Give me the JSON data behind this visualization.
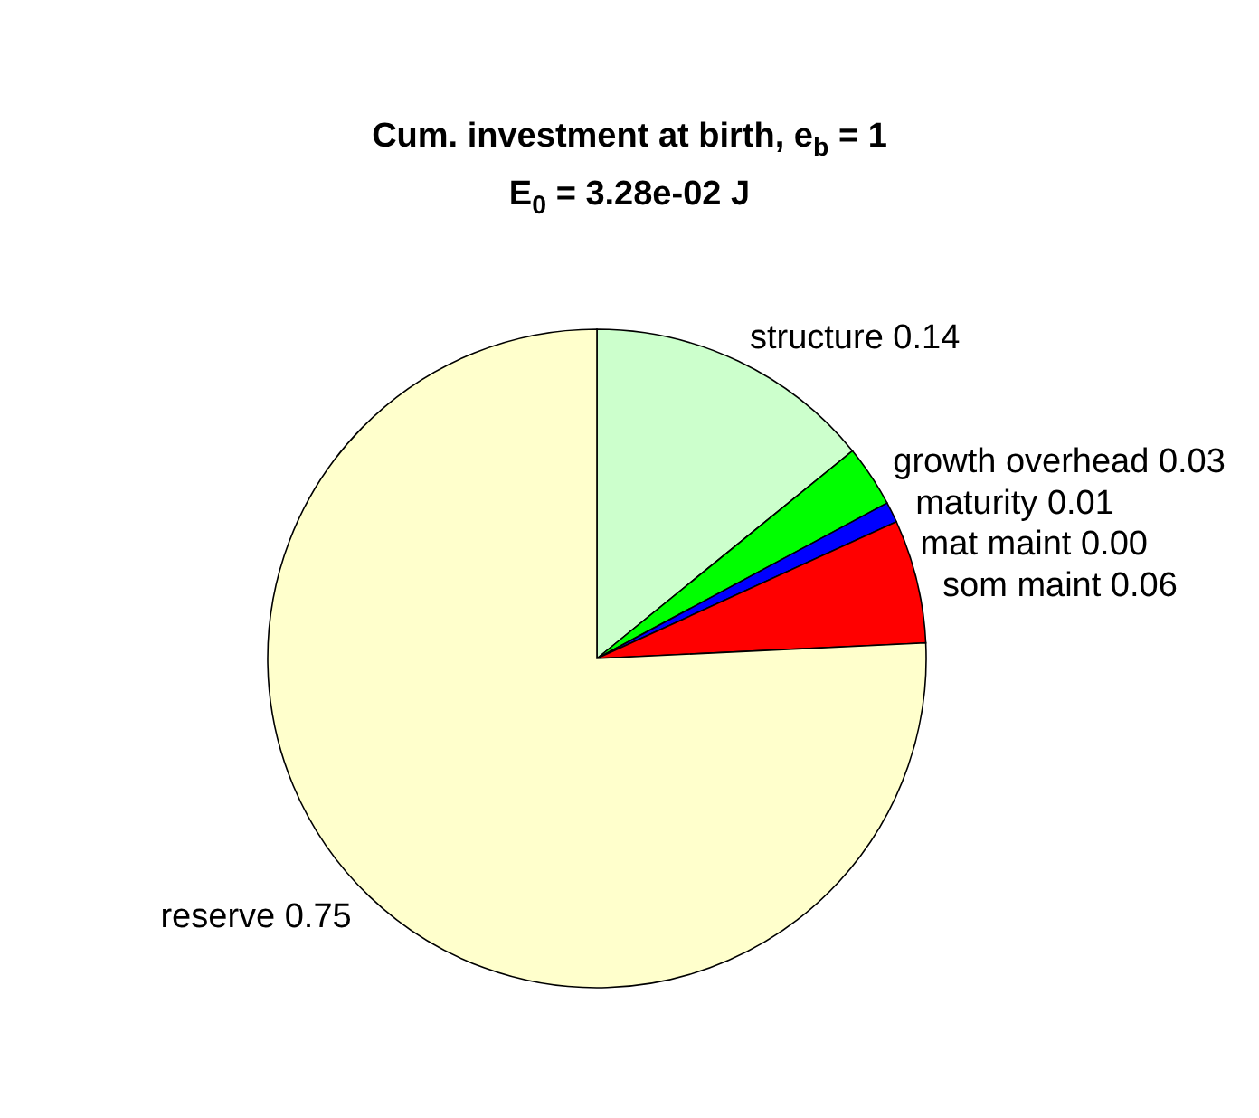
{
  "chart_data": {
    "type": "pie",
    "title": "Cum. investment at birth, e$_{b}$ = 1",
    "subtitle": "E$_{0}$ = 3.28e-02 J",
    "categories": [
      "structure",
      "growth overhead",
      "maturity",
      "mat maint",
      "som maint",
      "reserve"
    ],
    "values": [
      0.14,
      0.03,
      0.01,
      0.0,
      0.06,
      0.75
    ],
    "value_labels": [
      "0.14",
      "0.03",
      "0.01",
      "0.00",
      "0.06",
      "0.75"
    ],
    "colors": [
      "#ccffcc",
      "#00ff00",
      "#0000ff",
      "#ffffff",
      "#ff0000",
      "#ffffcc"
    ]
  }
}
